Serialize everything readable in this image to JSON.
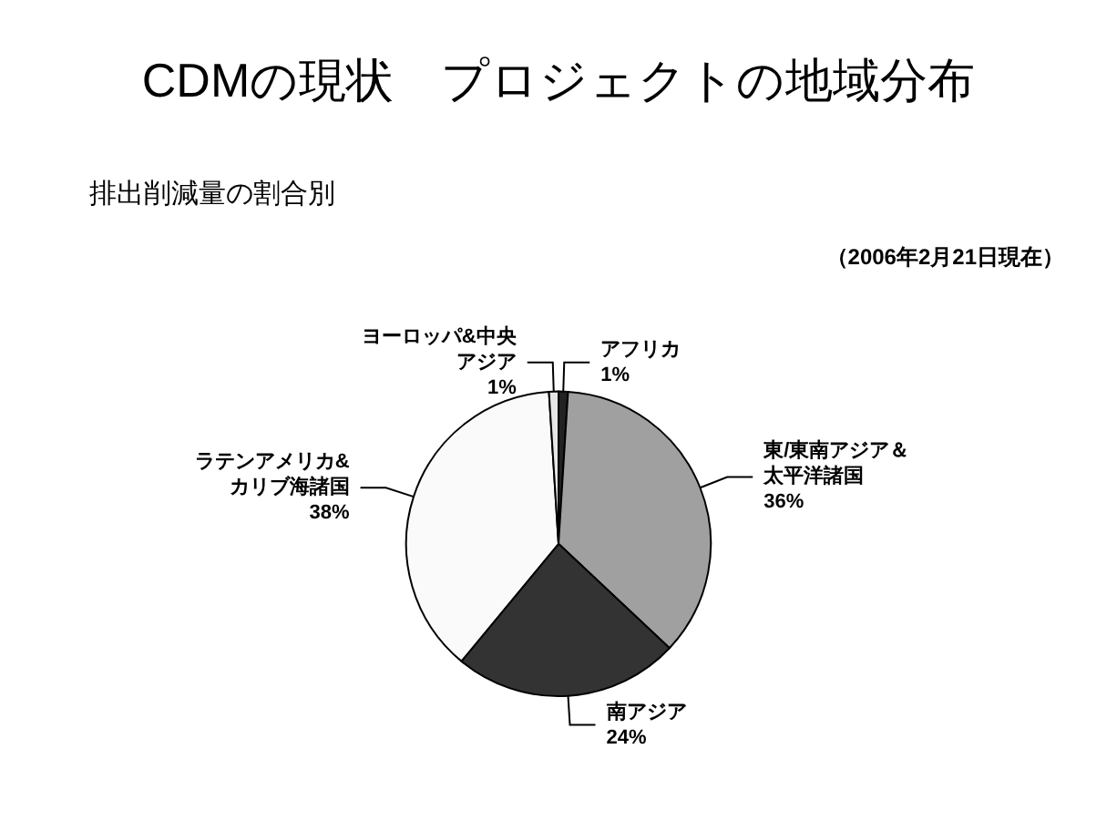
{
  "chart_data": {
    "type": "pie",
    "title": "CDMの現状　プロジェクトの地域分布",
    "subtitle": "排出削減量の割合別",
    "annotations": [
      "（2006年2月21日現在）"
    ],
    "categories": [
      "アフリカ",
      "東/東南アジア＆太平洋諸国",
      "南アジア",
      "ラテンアメリカ&カリブ海諸国",
      "ヨーロッパ&中央アジア"
    ],
    "values": [
      1,
      36,
      24,
      38,
      1
    ],
    "value_labels": [
      "1%",
      "36%",
      "24%",
      "38%",
      "1%"
    ],
    "colors": [
      "#222222",
      "#a0a0a0",
      "#333333",
      "#fafafa",
      "#e6e6e6"
    ],
    "legend": false
  }
}
